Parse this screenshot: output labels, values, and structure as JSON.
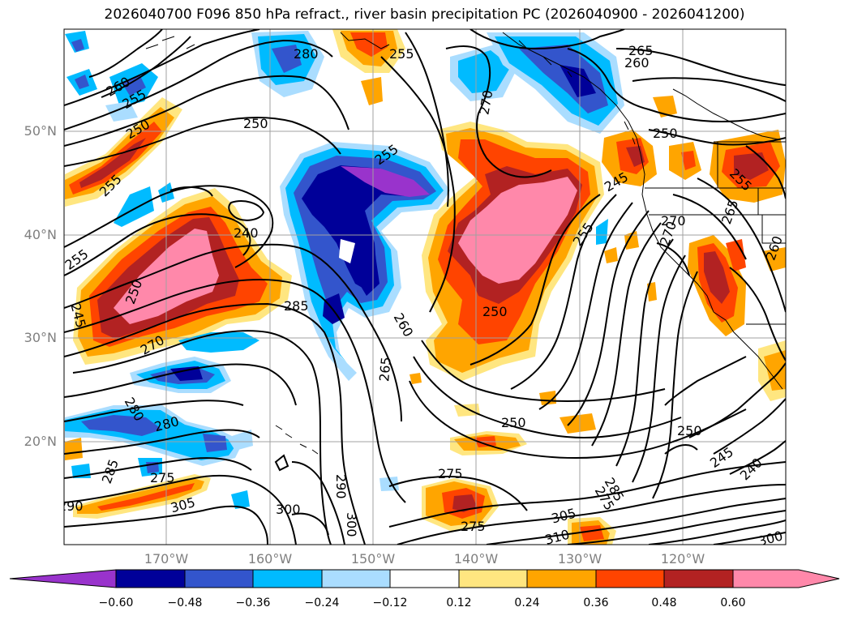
{
  "title": "2026040700 F096 850 hPa refract., river basin precipitation PC (2026040900 - 2026041200)",
  "lat_labels": [
    "50°N",
    "40°N",
    "30°N",
    "20°N"
  ],
  "lon_labels": [
    "170°W",
    "160°W",
    "150°W",
    "140°W",
    "130°W",
    "120°W"
  ],
  "colorbar": {
    "ticks": [
      "−0.60",
      "−0.48",
      "−0.36",
      "−0.24",
      "−0.12",
      "0.12",
      "0.24",
      "0.36",
      "0.48",
      "0.60"
    ],
    "colors": [
      "#9933cc",
      "#000099",
      "#3355cc",
      "#00bbff",
      "#aaddff",
      "#ffffff",
      "#ffe680",
      "#ffa500",
      "#ff4400",
      "#b22222",
      "#ff88aa",
      "#ff88aa"
    ]
  },
  "contour_labels": [
    "260",
    "255",
    "250",
    "255",
    "280",
    "255",
    "260",
    "265",
    "250",
    "255",
    "270",
    "250",
    "245",
    "240",
    "255",
    "250",
    "270",
    "285",
    "260",
    "265",
    "250",
    "270",
    "255",
    "280",
    "280",
    "285",
    "275",
    "305",
    "290",
    "300",
    "290",
    "275",
    "250",
    "275",
    "305",
    "310",
    "300",
    "285",
    "250",
    "245",
    "240",
    "300",
    "265",
    "270",
    "275",
    "255",
    "260",
    "245"
  ]
}
